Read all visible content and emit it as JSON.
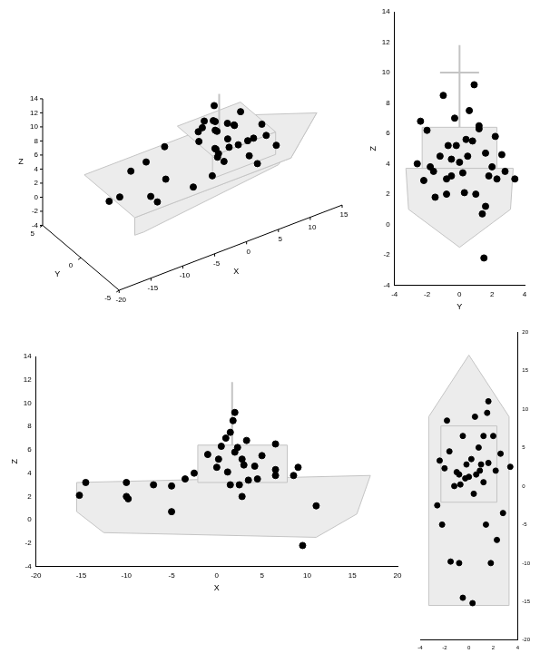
{
  "chart_data": [
    {
      "type": "scatter3d",
      "xlabel": "X",
      "ylabel": "Y",
      "zlabel": "Z",
      "x": [
        -15.2,
        -14.5,
        -10,
        -9.8,
        -7,
        -5,
        -5,
        -3.5,
        -2.5,
        -1,
        0,
        0.5,
        1,
        1.5,
        1.8,
        2,
        2.3,
        2.5,
        2.8,
        3,
        3.3,
        3.5,
        2.8,
        1.5,
        4.2,
        4.5,
        5,
        6.5,
        6.5,
        6.5,
        8.5,
        9,
        11,
        9.5,
        -10,
        0.2,
        2,
        1.2
      ],
      "y": [
        0.3,
        -0.5,
        1.8,
        -1.5,
        2.3,
        -2.2,
        1.4,
        2.8,
        -2.6,
        0.4,
        -1.2,
        1.2,
        -0.3,
        0.6,
        -1.0,
        0.9,
        -2.0,
        3.4,
        -0.2,
        1.6,
        -2.4,
        0.2,
        1.0,
        -0.8,
        2.6,
        -1.6,
        0.8,
        1.2,
        -0.5,
        2.0,
        -1.8,
        0.5,
        1.6,
        1.5,
        -0.8,
        -0.7,
        2.2,
        0
      ],
      "z": [
        2.1,
        3.2,
        3.2,
        1.8,
        3.0,
        2.9,
        0.7,
        3.5,
        4.0,
        5.6,
        4.5,
        6.3,
        7.0,
        7.5,
        8.5,
        9.2,
        6.2,
        3.0,
        5.2,
        4.7,
        6.8,
        3.4,
        2.0,
        3.0,
        4.6,
        3.5,
        5.5,
        6.5,
        4.3,
        3.8,
        3.8,
        4.5,
        1.2,
        -2.2,
        2.0,
        5.2,
        5.8,
        4.1
      ],
      "xlim": [
        -20,
        15
      ],
      "xticks": [
        -20,
        -15,
        -10,
        -5,
        0,
        5,
        10,
        15
      ],
      "ylim": [
        -5,
        5
      ],
      "yticks": [
        -5,
        0,
        5
      ],
      "zlim": [
        -4,
        14
      ],
      "zticks": [
        -4,
        -2,
        0,
        2,
        4,
        6,
        8,
        10,
        12,
        14
      ],
      "color": "#000000",
      "marker": "circle",
      "grid": false
    },
    {
      "type": "scatter",
      "xlabel": "Y",
      "ylabel": "Z",
      "x": [
        0.3,
        -0.5,
        1.8,
        -1.5,
        2.3,
        -2.2,
        1.4,
        2.8,
        -2.6,
        0.4,
        -1.2,
        1.2,
        -0.3,
        0.6,
        -1.0,
        0.9,
        -2.0,
        3.4,
        -0.2,
        1.6,
        -2.4,
        0.2,
        1.0,
        -0.8,
        2.6,
        -1.6,
        0.8,
        1.2,
        -0.5,
        2.0,
        -1.8,
        0.5,
        1.6,
        1.5,
        -0.8,
        -0.7,
        2.2,
        0
      ],
      "y": [
        2.1,
        3.2,
        3.2,
        1.8,
        3.0,
        2.9,
        0.7,
        3.5,
        4.0,
        5.6,
        4.5,
        6.3,
        7.0,
        7.5,
        8.5,
        9.2,
        6.2,
        3.0,
        5.2,
        4.7,
        6.8,
        3.4,
        2.0,
        3.0,
        4.6,
        3.5,
        5.5,
        6.5,
        4.3,
        3.8,
        3.8,
        4.5,
        1.2,
        -2.2,
        2.0,
        5.2,
        5.8,
        4.1
      ],
      "xlim": [
        -4,
        4
      ],
      "xticks": [
        -4,
        -2,
        0,
        2,
        4
      ],
      "ylim": [
        -4,
        14
      ],
      "yticks": [
        -4,
        -2,
        0,
        2,
        4,
        6,
        8,
        10,
        12,
        14
      ],
      "color": "#000000",
      "marker": "circle",
      "grid": false
    },
    {
      "type": "scatter",
      "xlabel": "X",
      "ylabel": "Z",
      "x": [
        -15.2,
        -14.5,
        -10,
        -9.8,
        -7,
        -5,
        -5,
        -3.5,
        -2.5,
        -1,
        0,
        0.5,
        1,
        1.5,
        1.8,
        2,
        2.3,
        2.5,
        2.8,
        3,
        3.3,
        3.5,
        2.8,
        1.5,
        4.2,
        4.5,
        5,
        6.5,
        6.5,
        6.5,
        8.5,
        9,
        11,
        9.5,
        -10,
        0.2,
        2,
        1.2
      ],
      "y": [
        2.1,
        3.2,
        3.2,
        1.8,
        3.0,
        2.9,
        0.7,
        3.5,
        4.0,
        5.6,
        4.5,
        6.3,
        7.0,
        7.5,
        8.5,
        9.2,
        6.2,
        3.0,
        5.2,
        4.7,
        6.8,
        3.4,
        2.0,
        3.0,
        4.6,
        3.5,
        5.5,
        6.5,
        4.3,
        3.8,
        3.8,
        4.5,
        1.2,
        -2.2,
        2.0,
        5.2,
        5.8,
        4.1
      ],
      "xlim": [
        -20,
        20
      ],
      "xticks": [
        -20,
        -15,
        -10,
        -5,
        0,
        5,
        10,
        15,
        20
      ],
      "ylim": [
        -4,
        14
      ],
      "yticks": [
        -4,
        -2,
        0,
        2,
        4,
        6,
        8,
        10,
        12,
        14
      ],
      "color": "#000000",
      "marker": "circle",
      "grid": false
    },
    {
      "type": "scatter",
      "x": [
        0.3,
        -0.5,
        1.8,
        -1.5,
        2.3,
        -2.2,
        1.4,
        2.8,
        -2.6,
        0.4,
        -1.2,
        1.2,
        -0.3,
        0.6,
        -1.0,
        0.9,
        -2.0,
        3.4,
        -0.2,
        1.6,
        -2.4,
        0.2,
        1.0,
        -0.8,
        2.6,
        -1.6,
        0.8,
        1.2,
        -0.5,
        2.0,
        -1.8,
        0.5,
        1.6,
        1.5,
        -0.8,
        -0.7,
        2.2,
        0
      ],
      "y": [
        -15.2,
        -14.5,
        -10,
        -9.8,
        -7,
        -5,
        -5,
        -3.5,
        -2.5,
        -1,
        0,
        0.5,
        1,
        1.5,
        1.8,
        2,
        2.3,
        2.5,
        2.8,
        3,
        3.3,
        3.5,
        2.8,
        1.5,
        4.2,
        4.5,
        5,
        6.5,
        6.5,
        6.5,
        8.5,
        9,
        11,
        9.5,
        -10,
        0.2,
        2,
        1.2
      ],
      "xlim": [
        -4,
        4
      ],
      "xticks": [
        -4,
        -2,
        0,
        2,
        4
      ],
      "ylim": [
        -20,
        20
      ],
      "yticks": [
        -20,
        -15,
        -10,
        -5,
        0,
        5,
        10,
        15,
        20
      ],
      "color": "#000000",
      "marker": "circle",
      "grid": false
    }
  ]
}
